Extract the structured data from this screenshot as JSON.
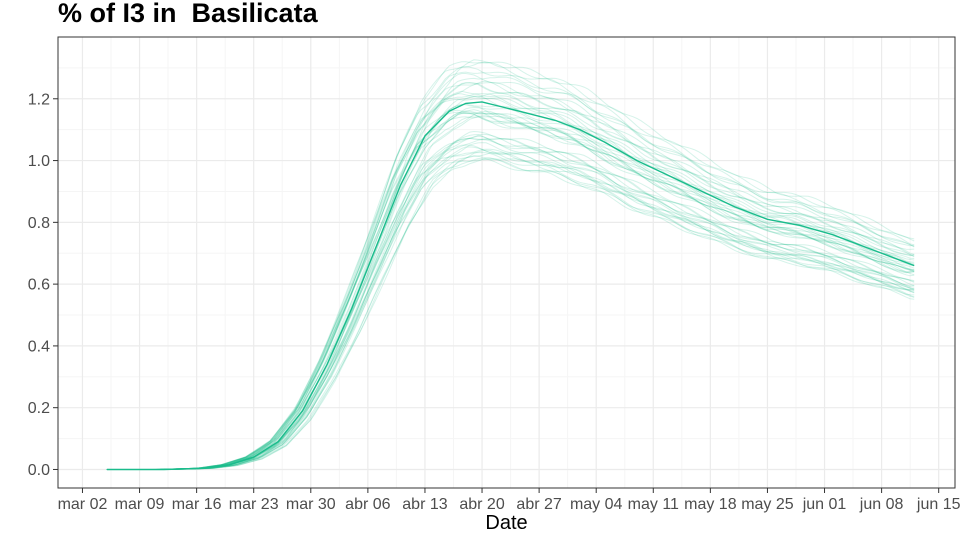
{
  "chart_data": {
    "type": "line",
    "title": "% of I3 in  Basilicata",
    "xlabel": "Date",
    "ylabel": "",
    "x_ticks": [
      "mar 02",
      "mar 09",
      "mar 16",
      "mar 23",
      "mar 30",
      "abr 06",
      "abr 13",
      "abr 20",
      "abr 27",
      "may 04",
      "may 11",
      "may 18",
      "may 25",
      "jun 01",
      "jun 08",
      "jun 15"
    ],
    "y_ticks": [
      "0.0",
      "0.2",
      "0.4",
      "0.6",
      "0.8",
      "1.0",
      "1.2"
    ],
    "xlim": [
      "2020-02-28",
      "2020-06-17"
    ],
    "ylim": [
      -0.06,
      1.4
    ],
    "grid": true,
    "colors": {
      "main": "#1abc8c",
      "ensemble": "#1abc8c",
      "panel_border": "#333333",
      "grid_major": "#ebebeb",
      "grid_minor": "#f5f5f5"
    },
    "series": [
      {
        "x": [
          "2020-03-05",
          "2020-03-12",
          "2020-03-17",
          "2020-03-20",
          "2020-03-23",
          "2020-03-26",
          "2020-03-29",
          "2020-04-01",
          "2020-04-04",
          "2020-04-07",
          "2020-04-10",
          "2020-04-13",
          "2020-04-16",
          "2020-04-18",
          "2020-04-20",
          "2020-04-23",
          "2020-04-26",
          "2020-04-29",
          "2020-05-02",
          "2020-05-05",
          "2020-05-09",
          "2020-05-13",
          "2020-05-17",
          "2020-05-21",
          "2020-05-25",
          "2020-05-29",
          "2020-06-02",
          "2020-06-06",
          "2020-06-09",
          "2020-06-12"
        ],
        "y": [
          0.0,
          0.0,
          0.004,
          0.015,
          0.04,
          0.09,
          0.19,
          0.34,
          0.52,
          0.72,
          0.92,
          1.08,
          1.16,
          1.185,
          1.19,
          1.17,
          1.15,
          1.13,
          1.1,
          1.06,
          1.0,
          0.95,
          0.9,
          0.85,
          0.81,
          0.79,
          0.76,
          0.72,
          0.69,
          0.66
        ]
      }
    ]
  }
}
